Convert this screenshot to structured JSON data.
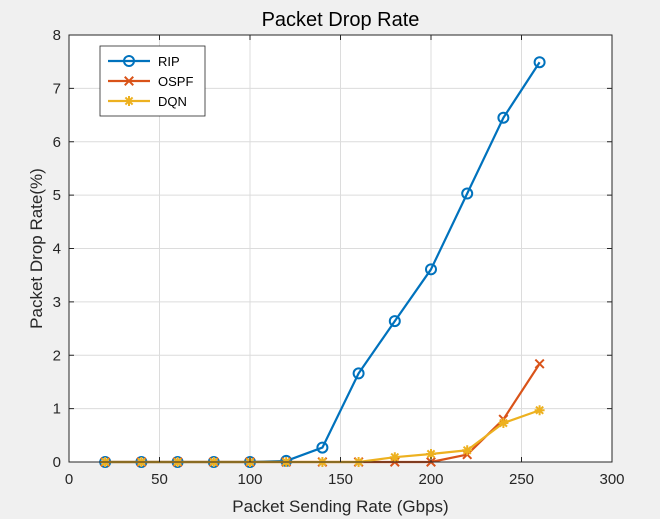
{
  "chart_data": {
    "type": "line",
    "title": "Packet Drop Rate",
    "xlabel": "Packet Sending Rate (Gbps)",
    "ylabel": "Packet Drop Rate(%)",
    "xlim": [
      0,
      300
    ],
    "ylim": [
      0,
      8
    ],
    "xticks": [
      0,
      50,
      100,
      150,
      200,
      250,
      300
    ],
    "yticks": [
      0,
      1,
      2,
      3,
      4,
      5,
      6,
      7,
      8
    ],
    "grid": true,
    "legend_position": "top-left",
    "x": [
      20,
      40,
      60,
      80,
      100,
      120,
      140,
      160,
      180,
      200,
      220,
      240,
      260
    ],
    "series": [
      {
        "name": "RIP",
        "color": "#0072BD",
        "marker": "circle",
        "values": [
          0,
          0,
          0,
          0,
          0,
          0.02,
          0.27,
          1.66,
          2.64,
          3.61,
          5.03,
          6.45,
          7.49
        ]
      },
      {
        "name": "OSPF",
        "color": "#D95319",
        "marker": "x",
        "values": [
          0,
          0,
          0,
          0,
          0,
          0,
          0,
          0,
          0,
          0,
          0.14,
          0.8,
          1.84
        ]
      },
      {
        "name": "DQN",
        "color": "#EDB120",
        "marker": "asterisk",
        "values": [
          0,
          0,
          0,
          0,
          0,
          0,
          0,
          0,
          0.09,
          0.15,
          0.22,
          0.73,
          0.97
        ]
      }
    ]
  }
}
